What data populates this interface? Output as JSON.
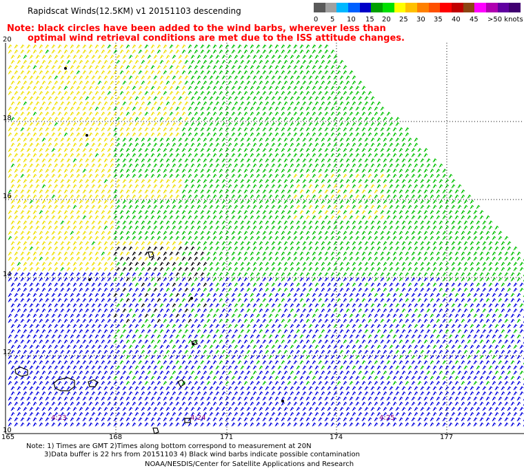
{
  "header": {
    "title": "Rapidscat Winds(12.5KM) v1 20151103 descending",
    "note_line1": "Note: black circles have been added to the wind barbs, wherever less than",
    "note_line2": "optimal wind retrieval conditions are met due to the ISS attitude changes."
  },
  "legend": {
    "unit": ">50 knots",
    "labels": [
      "0",
      "5",
      "10",
      "15",
      "20",
      "25",
      "30",
      "35",
      "40",
      "45"
    ],
    "colors": [
      "#5a5a5a",
      "#a0a0a0",
      "#00b8ff",
      "#0060ff",
      "#0000c8",
      "#00a000",
      "#00e000",
      "#ffff00",
      "#ffc000",
      "#ff8000",
      "#ff5000",
      "#ff0000",
      "#c00000",
      "#8b4513",
      "#ff00ff",
      "#b000b0",
      "#6000a0",
      "#400070"
    ]
  },
  "axes": {
    "lat_labels": [
      "20",
      "18",
      "16",
      "14",
      "12",
      "10"
    ],
    "lon_labels": [
      "165",
      "168",
      "171",
      "174",
      "177"
    ]
  },
  "times": [
    "4:23",
    "4:24",
    "4:25"
  ],
  "footer": {
    "line1": "Note: 1) Times are GMT 2)Times along bottom correspond to measurement at 20N",
    "line2": "3)Data buffer is 22 hrs from 20151103 4) Black wind barbs indicate possible contamination",
    "credit": "NOAA/NESDIS/Center for Satellite Applications and Research"
  },
  "barb_colors": {
    "blue": "#0000e0",
    "green": "#00c000",
    "yellow": "#f0e000",
    "black": "#000000",
    "red": "#ff0000"
  }
}
